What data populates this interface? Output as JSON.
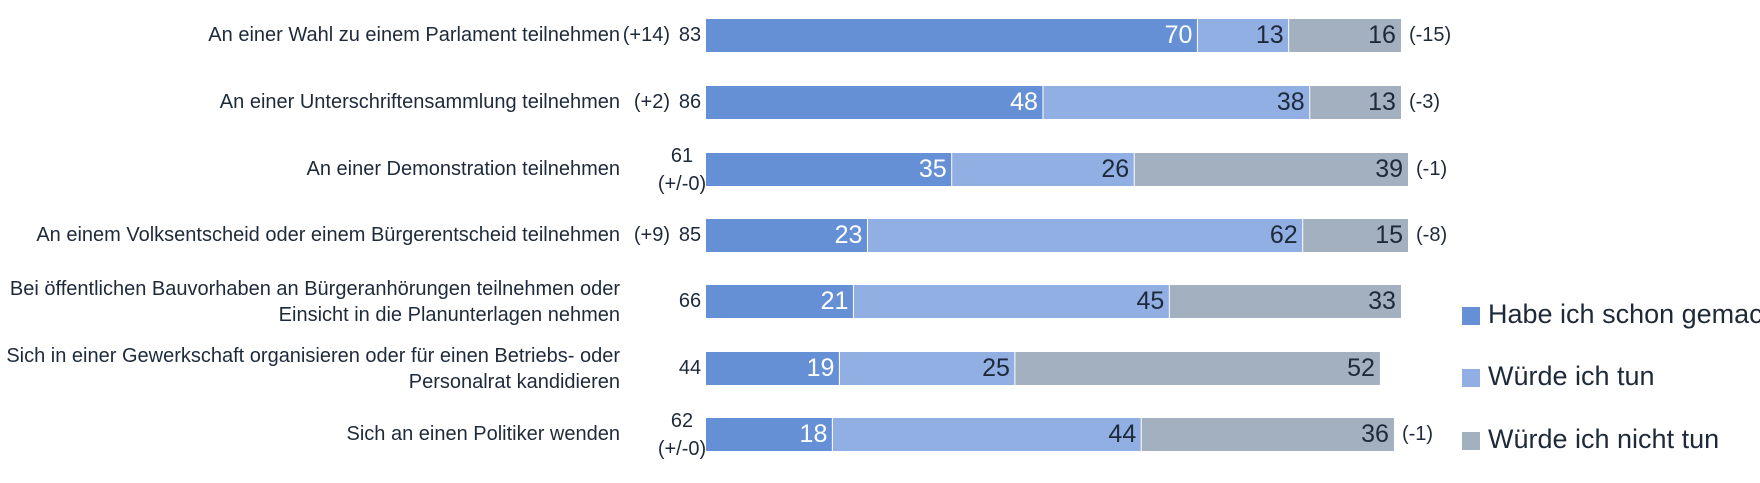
{
  "chart_data": {
    "type": "bar",
    "orientation": "horizontal",
    "stacked": true,
    "xlim": [
      0,
      100
    ],
    "categories": [
      [
        "An einer Wahl zu einem Parlament teilnehmen"
      ],
      [
        "An einer Unterschriftensammlung teilnehmen"
      ],
      [
        "An einer Demonstration teilnehmen"
      ],
      [
        "An einem Volksentscheid oder einem Bürgerentscheid teilnehmen"
      ],
      [
        "Bei öffentlichen Bauvorhaben an Bürgeranhörungen teilnehmen oder",
        "Einsicht in die Planunterlagen nehmen"
      ],
      [
        "Sich in einer Gewerkschaft organisieren oder für einen Betriebs- oder",
        "Personalrat kandidieren"
      ],
      [
        "Sich an einen Politiker wenden"
      ]
    ],
    "series": [
      {
        "name": "Habe ich schon gemacht",
        "color": "#6690d6",
        "values": [
          70,
          48,
          35,
          23,
          21,
          19,
          18
        ]
      },
      {
        "name": "Würde ich tun",
        "color": "#91afe3",
        "values": [
          13,
          38,
          26,
          62,
          45,
          25,
          44
        ]
      },
      {
        "name": "Würde ich nicht tun",
        "color": "#a3b0c0",
        "values": [
          16,
          13,
          39,
          15,
          33,
          52,
          36
        ]
      }
    ],
    "left_change": [
      "(+14)",
      "(+2)",
      "(+/-0)",
      "(+9)",
      "",
      "",
      "(+/-0)"
    ],
    "left_total": [
      "83",
      "86",
      "61",
      "85",
      "66",
      "44",
      "62"
    ],
    "right_change": [
      "(-15)",
      "(-3)",
      "(-1)",
      "(-8)",
      "",
      "",
      "(-1)"
    ],
    "legend": {
      "placement": "right"
    },
    "grid": false
  }
}
